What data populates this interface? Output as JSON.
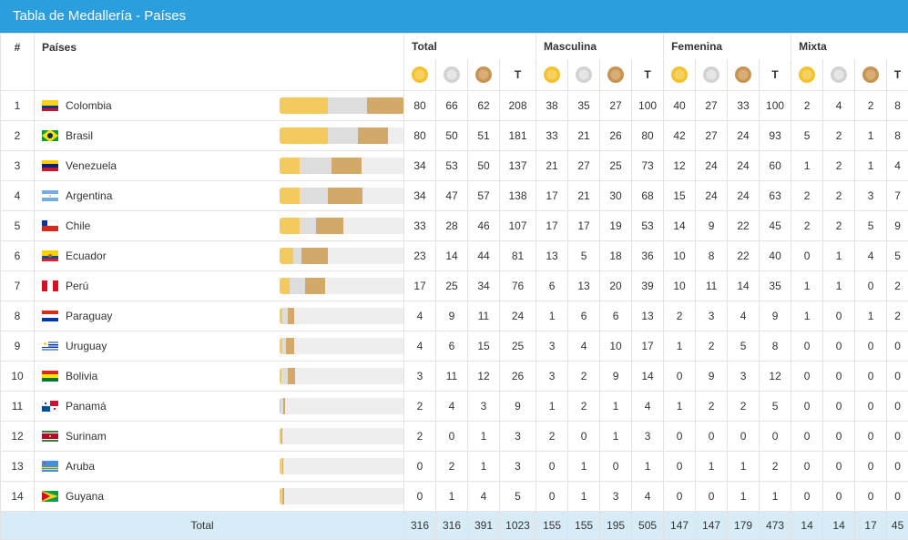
{
  "header": {
    "title": "Tabla de Medallería - Países"
  },
  "columns": {
    "rank": "#",
    "country": "Países",
    "groups": [
      "Total",
      "Masculina",
      "Femenina",
      "Mixta"
    ],
    "total_short": "T"
  },
  "colors": {
    "header_bg": "#2b9fde",
    "gold": "#f2c230",
    "silver": "#d2d2d2",
    "bronze": "#c79552",
    "total_row_bg": "#d8ecf7"
  },
  "bar_scale_max": 208,
  "rows": [
    {
      "rank": "1",
      "country": "Colombia",
      "flag": "colombia",
      "total": [
        "80",
        "66",
        "62",
        "208"
      ],
      "masc": [
        "38",
        "35",
        "27",
        "100"
      ],
      "fem": [
        "40",
        "27",
        "33",
        "100"
      ],
      "mixta": [
        "2",
        "4",
        "2",
        "8"
      ]
    },
    {
      "rank": "2",
      "country": "Brasil",
      "flag": "brasil",
      "total": [
        "80",
        "50",
        "51",
        "181"
      ],
      "masc": [
        "33",
        "21",
        "26",
        "80"
      ],
      "fem": [
        "42",
        "27",
        "24",
        "93"
      ],
      "mixta": [
        "5",
        "2",
        "1",
        "8"
      ]
    },
    {
      "rank": "3",
      "country": "Venezuela",
      "flag": "venezuela",
      "total": [
        "34",
        "53",
        "50",
        "137"
      ],
      "masc": [
        "21",
        "27",
        "25",
        "73"
      ],
      "fem": [
        "12",
        "24",
        "24",
        "60"
      ],
      "mixta": [
        "1",
        "2",
        "1",
        "4"
      ]
    },
    {
      "rank": "4",
      "country": "Argentina",
      "flag": "argentina",
      "total": [
        "34",
        "47",
        "57",
        "138"
      ],
      "masc": [
        "17",
        "21",
        "30",
        "68"
      ],
      "fem": [
        "15",
        "24",
        "24",
        "63"
      ],
      "mixta": [
        "2",
        "2",
        "3",
        "7"
      ]
    },
    {
      "rank": "5",
      "country": "Chile",
      "flag": "chile",
      "total": [
        "33",
        "28",
        "46",
        "107"
      ],
      "masc": [
        "17",
        "17",
        "19",
        "53"
      ],
      "fem": [
        "14",
        "9",
        "22",
        "45"
      ],
      "mixta": [
        "2",
        "2",
        "5",
        "9"
      ]
    },
    {
      "rank": "6",
      "country": "Ecuador",
      "flag": "ecuador",
      "total": [
        "23",
        "14",
        "44",
        "81"
      ],
      "masc": [
        "13",
        "5",
        "18",
        "36"
      ],
      "fem": [
        "10",
        "8",
        "22",
        "40"
      ],
      "mixta": [
        "0",
        "1",
        "4",
        "5"
      ]
    },
    {
      "rank": "7",
      "country": "Perú",
      "flag": "peru",
      "total": [
        "17",
        "25",
        "34",
        "76"
      ],
      "masc": [
        "6",
        "13",
        "20",
        "39"
      ],
      "fem": [
        "10",
        "11",
        "14",
        "35"
      ],
      "mixta": [
        "1",
        "1",
        "0",
        "2"
      ]
    },
    {
      "rank": "8",
      "country": "Paraguay",
      "flag": "paraguay",
      "total": [
        "4",
        "9",
        "11",
        "24"
      ],
      "masc": [
        "1",
        "6",
        "6",
        "13"
      ],
      "fem": [
        "2",
        "3",
        "4",
        "9"
      ],
      "mixta": [
        "1",
        "0",
        "1",
        "2"
      ]
    },
    {
      "rank": "9",
      "country": "Uruguay",
      "flag": "uruguay",
      "total": [
        "4",
        "6",
        "15",
        "25"
      ],
      "masc": [
        "3",
        "4",
        "10",
        "17"
      ],
      "fem": [
        "1",
        "2",
        "5",
        "8"
      ],
      "mixta": [
        "0",
        "0",
        "0",
        "0"
      ]
    },
    {
      "rank": "10",
      "country": "Bolivia",
      "flag": "bolivia",
      "total": [
        "3",
        "11",
        "12",
        "26"
      ],
      "masc": [
        "3",
        "2",
        "9",
        "14"
      ],
      "fem": [
        "0",
        "9",
        "3",
        "12"
      ],
      "mixta": [
        "0",
        "0",
        "0",
        "0"
      ]
    },
    {
      "rank": "11",
      "country": "Panamá",
      "flag": "panama",
      "total": [
        "2",
        "4",
        "3",
        "9"
      ],
      "masc": [
        "1",
        "2",
        "1",
        "4"
      ],
      "fem": [
        "1",
        "2",
        "2",
        "5"
      ],
      "mixta": [
        "0",
        "0",
        "0",
        "0"
      ]
    },
    {
      "rank": "12",
      "country": "Surinam",
      "flag": "surinam",
      "total": [
        "2",
        "0",
        "1",
        "3"
      ],
      "masc": [
        "2",
        "0",
        "1",
        "3"
      ],
      "fem": [
        "0",
        "0",
        "0",
        "0"
      ],
      "mixta": [
        "0",
        "0",
        "0",
        "0"
      ]
    },
    {
      "rank": "13",
      "country": "Aruba",
      "flag": "aruba",
      "total": [
        "0",
        "2",
        "1",
        "3"
      ],
      "masc": [
        "0",
        "1",
        "0",
        "1"
      ],
      "fem": [
        "0",
        "1",
        "1",
        "2"
      ],
      "mixta": [
        "0",
        "0",
        "0",
        "0"
      ]
    },
    {
      "rank": "14",
      "country": "Guyana",
      "flag": "guyana",
      "total": [
        "0",
        "1",
        "4",
        "5"
      ],
      "masc": [
        "0",
        "1",
        "3",
        "4"
      ],
      "fem": [
        "0",
        "0",
        "1",
        "1"
      ],
      "mixta": [
        "0",
        "0",
        "0",
        "0"
      ]
    }
  ],
  "totals": {
    "label": "Total",
    "total": [
      "316",
      "316",
      "391",
      "1023"
    ],
    "masc": [
      "155",
      "155",
      "195",
      "505"
    ],
    "fem": [
      "147",
      "147",
      "179",
      "473"
    ],
    "mixta": [
      "14",
      "14",
      "17",
      "45"
    ]
  }
}
